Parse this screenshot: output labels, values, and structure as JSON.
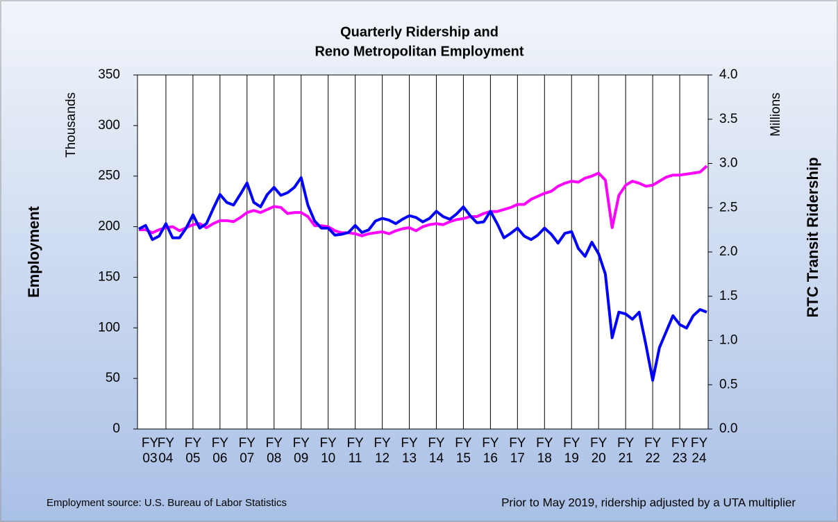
{
  "chart_data": {
    "type": "line",
    "title": "Quarterly Ridership and",
    "subtitle": "Reno Metropolitan Employment",
    "ylabel": "Employment",
    "yunit": "Thousands",
    "y2label": "RTC Transit Ridership",
    "y2unit": "Millions",
    "notes": [
      "Employment source: U.S. Bureau of Labor Statistics",
      "Prior to May 2019, ridership adjusted by a UTA multiplier"
    ],
    "categories": [
      "FY 03",
      null,
      null,
      null,
      "FY 04",
      null,
      null,
      null,
      "FY 05",
      null,
      null,
      null,
      "FY 06",
      null,
      null,
      null,
      "FY 07",
      null,
      null,
      null,
      "FY 08",
      null,
      null,
      null,
      "FY 09",
      null,
      null,
      null,
      "FY 10",
      null,
      null,
      null,
      "FY 11",
      null,
      null,
      null,
      "FY 12",
      null,
      null,
      null,
      "FY 13",
      null,
      null,
      null,
      "FY 14",
      null,
      null,
      null,
      "FY 15",
      null,
      null,
      null,
      "FY 16",
      null,
      null,
      null,
      "FY 17",
      null,
      null,
      null,
      "FY 18",
      null,
      null,
      null,
      "FY 19",
      null,
      null,
      null,
      "FY 20",
      null,
      null,
      null,
      "FY 21",
      null,
      null,
      null,
      "FY 22",
      null,
      null,
      null,
      "FY 23",
      null,
      null,
      null,
      "FY 24"
    ],
    "series": [
      {
        "name": "Employment",
        "color": "#ff00ff",
        "values": [
          197,
          197,
          194,
          197,
          199,
          200,
          196,
          199,
          202,
          203,
          199,
          203,
          206,
          206,
          205,
          209,
          214,
          216,
          214,
          217,
          220,
          219,
          213,
          214,
          214,
          210,
          201,
          201,
          200,
          196,
          194,
          194,
          193,
          191,
          193,
          194,
          195,
          193,
          196,
          198,
          199,
          196,
          200,
          202,
          203,
          202,
          205,
          207,
          208,
          210,
          210,
          213,
          215,
          215,
          217,
          219,
          222,
          222,
          227,
          230,
          233,
          235,
          240,
          243,
          245,
          244,
          248,
          250,
          253,
          246,
          199,
          231,
          241,
          245,
          243,
          240,
          241,
          245,
          249,
          251,
          251,
          252,
          253,
          254,
          260
        ]
      },
      {
        "name": "RTC Ridership",
        "color": "#0000ff",
        "axis": "y2",
        "values": [
          2.26,
          2.3,
          2.14,
          2.18,
          2.32,
          2.16,
          2.16,
          2.27,
          2.42,
          2.27,
          2.32,
          2.49,
          2.65,
          2.56,
          2.53,
          2.65,
          2.78,
          2.56,
          2.51,
          2.65,
          2.73,
          2.64,
          2.67,
          2.73,
          2.84,
          2.53,
          2.35,
          2.27,
          2.27,
          2.19,
          2.2,
          2.22,
          2.3,
          2.22,
          2.25,
          2.35,
          2.38,
          2.36,
          2.32,
          2.37,
          2.41,
          2.39,
          2.34,
          2.38,
          2.46,
          2.4,
          2.37,
          2.43,
          2.51,
          2.41,
          2.33,
          2.34,
          2.46,
          2.32,
          2.16,
          2.21,
          2.27,
          2.18,
          2.14,
          2.19,
          2.27,
          2.2,
          2.1,
          2.21,
          2.23,
          2.04,
          1.95,
          2.11,
          1.98,
          1.75,
          1.03,
          1.32,
          1.3,
          1.24,
          1.32,
          0.95,
          0.55,
          0.92,
          1.1,
          1.28,
          1.18,
          1.14,
          1.28,
          1.35,
          1.32
        ]
      }
    ],
    "ylim": [
      0,
      350
    ],
    "yticks": [
      0,
      50,
      100,
      150,
      200,
      250,
      300,
      350
    ],
    "y2lim": [
      0,
      4
    ],
    "y2ticks": [
      {
        "value": 0,
        "label": "0.0"
      },
      0.5,
      {
        "value": 1,
        "label": "1.0"
      },
      1.5,
      {
        "value": 2,
        "label": "2.0"
      },
      2.5,
      {
        "value": 3,
        "label": "3.0"
      },
      3.5,
      {
        "value": 4,
        "label": "4.0"
      }
    ],
    "grid": "x"
  }
}
